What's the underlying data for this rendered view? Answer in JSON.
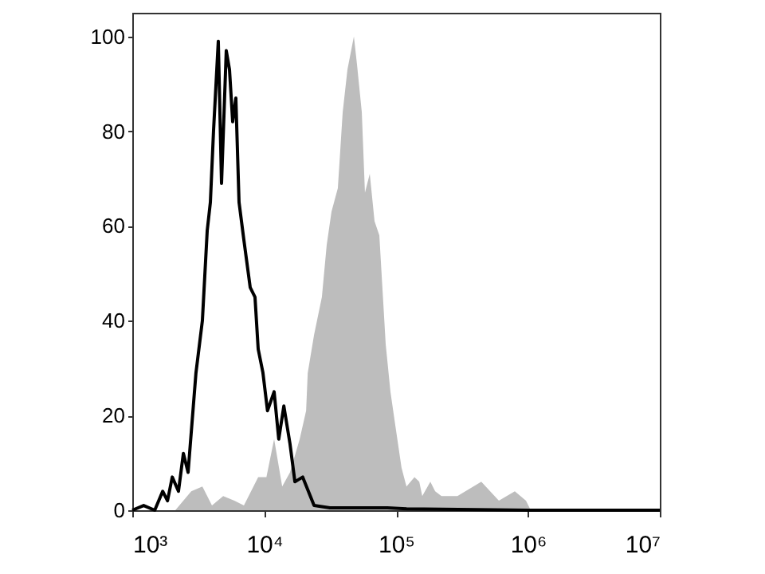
{
  "chart_data": {
    "type": "line",
    "log": "x",
    "xlim": [
      1000,
      10000000
    ],
    "ylim": [
      0,
      105
    ],
    "xticks": [
      {
        "value": 1000,
        "label": "10³"
      },
      {
        "value": 10000,
        "label": "10⁴"
      },
      {
        "value": 100000,
        "label": "10⁵"
      },
      {
        "value": 1000000,
        "label": "10⁶"
      },
      {
        "value": 10000000,
        "label": "10⁷"
      }
    ],
    "yticks": [
      0,
      20,
      40,
      60,
      80,
      100
    ],
    "grid": false,
    "series": [
      {
        "type": "area",
        "color": "#bdbdbd",
        "x": [
          2120,
          2800,
          3400,
          4020,
          4890,
          5940,
          7020,
          9010,
          10400,
          11900,
          13700,
          15700,
          18600,
          20800,
          21400,
          23900,
          27400,
          29800,
          32400,
          36200,
          39400,
          42800,
          47900,
          50600,
          55000,
          58100,
          63200,
          68700,
          74700,
          83500,
          90700,
          98600,
          110000,
          120000,
          138000,
          150000,
          158000,
          182000,
          198000,
          221000,
          292000,
          443000,
          602000,
          795000,
          966000,
          1050000
        ],
        "values": [
          0,
          4,
          5,
          1,
          3,
          2,
          1,
          7,
          7,
          15,
          5,
          8,
          15,
          21,
          29,
          37,
          45,
          56,
          63,
          68,
          84,
          93,
          100,
          94,
          84,
          67,
          71,
          61,
          58,
          35,
          25,
          18,
          9,
          5,
          7,
          6,
          3,
          6,
          4,
          3,
          3,
          6,
          2,
          4,
          2,
          0
        ]
      },
      {
        "color": "#000000",
        "x": [
          1000,
          1220,
          1480,
          1700,
          1850,
          2010,
          2240,
          2440,
          2650,
          3040,
          3400,
          3700,
          3910,
          4130,
          4490,
          4750,
          5160,
          5460,
          5770,
          6100,
          6450,
          7020,
          7840,
          8520,
          9010,
          9790,
          10600,
          11900,
          12900,
          14100,
          15700,
          17100,
          19600,
          23900,
          31500,
          49200,
          85800,
          120000,
          1000000,
          10000000
        ],
        "values": [
          0,
          1,
          0,
          4,
          2,
          7,
          4,
          12,
          8,
          29,
          40,
          59,
          65,
          80,
          99,
          69,
          97,
          93,
          82,
          87,
          65,
          57,
          47,
          45,
          34,
          29,
          21,
          25,
          15,
          22,
          14,
          6,
          7,
          1,
          0.5,
          0.5,
          0.5,
          0.3,
          0,
          0
        ]
      }
    ]
  }
}
